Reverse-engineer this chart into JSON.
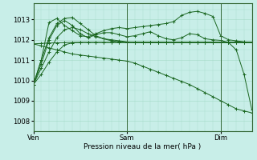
{
  "bg_color": "#c8eee8",
  "grid_color": "#aaddcc",
  "line_color": "#1a6620",
  "xlabel": "Pression niveau de la mer( hPa )",
  "ylim": [
    1007.5,
    1013.8
  ],
  "yticks": [
    1008,
    1009,
    1010,
    1011,
    1012,
    1013
  ],
  "xtick_labels": [
    "Ven",
    "Sam",
    "Dim"
  ],
  "xtick_positions": [
    0,
    36,
    72
  ],
  "vline_positions": [
    0,
    36,
    72
  ],
  "series": [
    {
      "name": "s1_flat",
      "x": [
        0,
        3,
        6,
        9,
        12,
        15,
        18,
        21,
        24,
        27,
        30,
        33,
        36,
        39,
        42,
        45,
        48,
        51,
        54,
        57,
        60,
        63,
        66,
        69,
        72,
        75,
        78,
        81,
        84
      ],
      "y": [
        1011.8,
        1011.82,
        1011.84,
        1011.85,
        1011.86,
        1011.87,
        1011.87,
        1011.87,
        1011.87,
        1011.87,
        1011.87,
        1011.87,
        1011.87,
        1011.87,
        1011.87,
        1011.87,
        1011.87,
        1011.87,
        1011.87,
        1011.87,
        1011.87,
        1011.87,
        1011.87,
        1011.87,
        1011.87,
        1011.87,
        1011.87,
        1011.87,
        1011.87
      ]
    },
    {
      "name": "s2_rise_plateau",
      "x": [
        0,
        3,
        6,
        9,
        12,
        15,
        18,
        21,
        24,
        27,
        30,
        33,
        36,
        39,
        42,
        45,
        48,
        51,
        54,
        57,
        60,
        63,
        66,
        69,
        72,
        75,
        78,
        81,
        84
      ],
      "y": [
        1009.8,
        1010.3,
        1010.9,
        1011.4,
        1011.75,
        1011.85,
        1011.87,
        1011.87,
        1011.87,
        1011.87,
        1011.87,
        1011.87,
        1011.87,
        1011.87,
        1011.87,
        1011.87,
        1011.87,
        1011.87,
        1011.87,
        1011.87,
        1011.87,
        1011.87,
        1011.87,
        1011.87,
        1011.87,
        1011.87,
        1011.87,
        1011.87,
        1011.87
      ]
    },
    {
      "name": "s3_rise_peak_drop",
      "x": [
        0,
        3,
        6,
        9,
        12,
        15,
        18,
        21,
        24,
        27,
        30,
        33,
        36,
        39,
        42,
        45,
        48,
        51,
        54,
        57,
        60,
        63,
        66,
        69,
        72,
        75,
        78,
        81,
        84
      ],
      "y": [
        1009.8,
        1010.6,
        1011.4,
        1012.1,
        1012.5,
        1012.6,
        1012.5,
        1012.3,
        1012.15,
        1012.05,
        1012.0,
        1011.95,
        1011.9,
        1011.88,
        1011.87,
        1011.87,
        1011.87,
        1011.87,
        1011.87,
        1011.87,
        1011.87,
        1011.87,
        1011.87,
        1011.87,
        1011.87,
        1011.87,
        1011.87,
        1011.87,
        1011.87
      ]
    },
    {
      "name": "s4_rise_peak_drop2",
      "x": [
        0,
        3,
        6,
        9,
        12,
        15,
        18,
        21,
        24,
        27,
        30,
        33,
        36,
        39,
        42,
        45,
        48,
        51,
        54,
        57,
        60,
        63,
        66,
        69,
        72,
        75,
        78,
        81,
        84
      ],
      "y": [
        1009.8,
        1011.0,
        1012.1,
        1012.8,
        1013.05,
        1013.1,
        1012.8,
        1012.5,
        1012.2,
        1012.05,
        1011.95,
        1011.9,
        1011.87,
        1011.87,
        1011.87,
        1011.87,
        1011.87,
        1011.87,
        1011.87,
        1011.87,
        1011.87,
        1011.87,
        1011.87,
        1011.87,
        1011.87,
        1011.87,
        1011.87,
        1011.87,
        1011.87
      ]
    },
    {
      "name": "s5_volatile_rise_peak",
      "x": [
        0,
        3,
        6,
        9,
        12,
        15,
        18,
        21,
        24,
        27,
        30,
        33,
        36,
        39,
        42,
        45,
        48,
        51,
        54,
        57,
        60,
        63,
        66,
        69,
        72,
        75,
        78,
        81,
        84
      ],
      "y": [
        1009.8,
        1011.0,
        1012.85,
        1013.05,
        1012.7,
        1012.45,
        1012.2,
        1012.15,
        1012.3,
        1012.45,
        1012.55,
        1012.6,
        1012.55,
        1012.6,
        1012.65,
        1012.7,
        1012.75,
        1012.8,
        1012.9,
        1013.2,
        1013.35,
        1013.4,
        1013.3,
        1013.15,
        1012.2,
        1012.0,
        1011.95,
        1011.9,
        1011.87
      ]
    },
    {
      "name": "s6_volatile_drop_end",
      "x": [
        0,
        3,
        6,
        9,
        12,
        15,
        18,
        21,
        24,
        27,
        30,
        33,
        36,
        39,
        42,
        45,
        48,
        51,
        54,
        57,
        60,
        63,
        66,
        69,
        72,
        75,
        78,
        81,
        84
      ],
      "y": [
        1009.8,
        1010.8,
        1012.0,
        1012.7,
        1012.95,
        1012.7,
        1012.3,
        1012.1,
        1012.25,
        1012.35,
        1012.35,
        1012.25,
        1012.15,
        1012.2,
        1012.3,
        1012.4,
        1012.2,
        1012.05,
        1012.0,
        1012.1,
        1012.3,
        1012.25,
        1012.05,
        1012.0,
        1011.97,
        1011.87,
        1011.5,
        1010.3,
        1008.55
      ]
    },
    {
      "name": "s7_long_diagonal",
      "x": [
        0,
        3,
        6,
        9,
        12,
        15,
        18,
        21,
        24,
        27,
        30,
        33,
        36,
        39,
        42,
        45,
        48,
        51,
        54,
        57,
        60,
        63,
        66,
        69,
        72,
        75,
        78,
        81,
        84
      ],
      "y": [
        1011.8,
        1011.7,
        1011.6,
        1011.5,
        1011.4,
        1011.3,
        1011.25,
        1011.2,
        1011.15,
        1011.1,
        1011.05,
        1011.0,
        1010.95,
        1010.85,
        1010.7,
        1010.55,
        1010.4,
        1010.25,
        1010.1,
        1009.95,
        1009.8,
        1009.6,
        1009.4,
        1009.2,
        1009.0,
        1008.8,
        1008.6,
        1008.5,
        1008.4
      ]
    }
  ]
}
